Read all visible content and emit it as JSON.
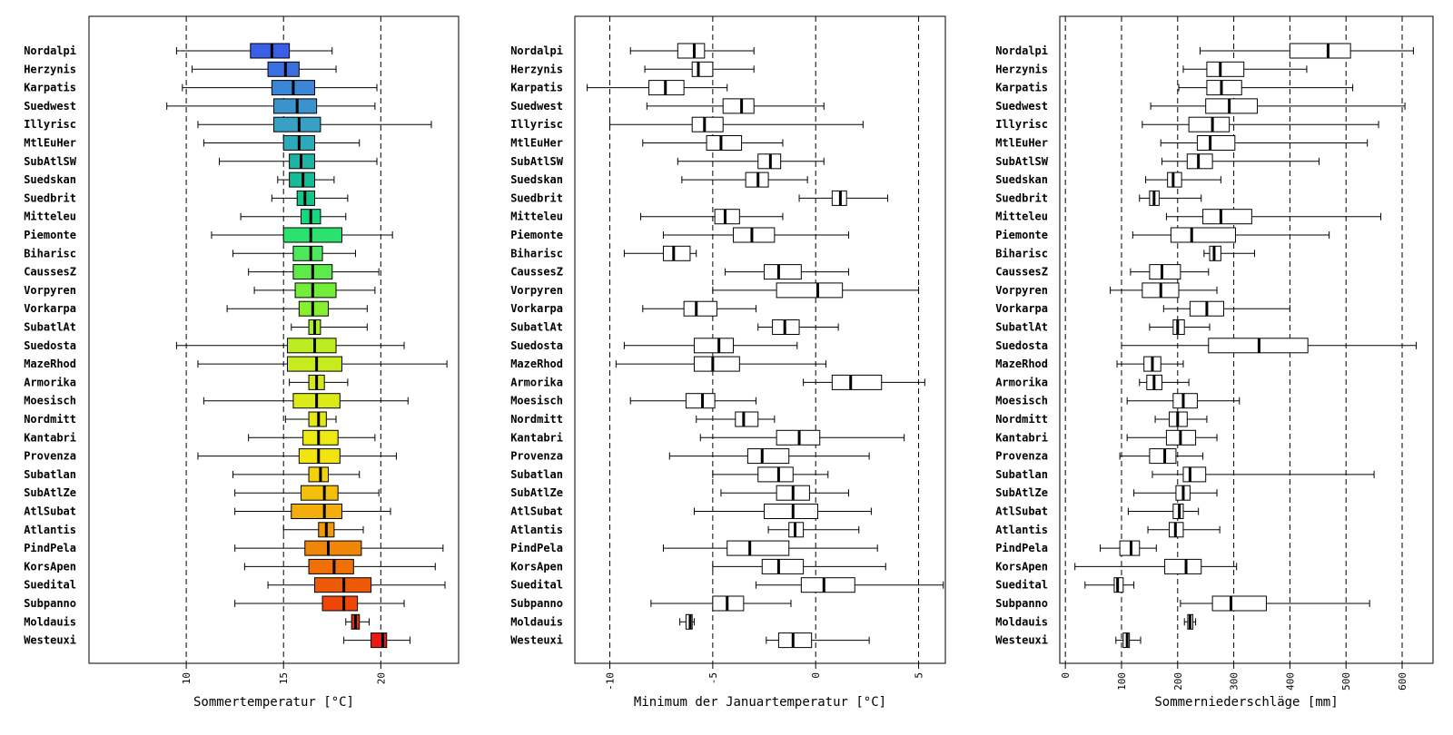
{
  "chart_data": [
    {
      "type": "boxplot",
      "xlabel": "Sommertemperatur [°C]",
      "xlim": [
        5,
        24
      ],
      "ticks": [
        10,
        15,
        20
      ],
      "tick_labels": [
        "10",
        "15",
        "20"
      ],
      "gridlines": [
        10,
        15,
        20
      ],
      "colored": true,
      "categories": [
        "Nordalpi",
        "Herzynis",
        "Karpatis",
        "Suedwest",
        "Illyrisc",
        "MtlEuHer",
        "SubAtlSW",
        "Suedskan",
        "Suedbrit",
        "Mitteleu",
        "Piemonte",
        "Biharisc",
        "CaussesZ",
        "Vorpyren",
        "Vorkarpa",
        "SubatlAt",
        "Suedosta",
        "MazeRhod",
        "Armorika",
        "Moesisch",
        "Nordmitt",
        "Kantabri",
        "Provenza",
        "Subatlan",
        "SubAtlZe",
        "AtlSubat",
        "Atlantis",
        "PindPela",
        "KorsApen",
        "Suedital",
        "Subpanno",
        "Moldauis",
        "Westeuxi"
      ],
      "colors": [
        "#3a5fe6",
        "#3b6fe0",
        "#3b86d4",
        "#3a93cc",
        "#37a0c4",
        "#2caab8",
        "#1db4a6",
        "#14bd98",
        "#10c789",
        "#19d77e",
        "#2ce26e",
        "#4ee85c",
        "#5eea4a",
        "#72ee3a",
        "#86f030",
        "#a8ef2a",
        "#bcec22",
        "#c8eb1e",
        "#d6e81c",
        "#dcea18",
        "#e4e616",
        "#ecea12",
        "#f2e410",
        "#f2d20c",
        "#f2c00a",
        "#f2ae0c",
        "#f29a0a",
        "#f08608",
        "#f07006",
        "#ec5a06",
        "#ee4606",
        "#e43204",
        "#ea1a10"
      ],
      "boxes": [
        {
          "whislo": 9.5,
          "q1": 13.3,
          "med": 14.4,
          "q3": 15.3,
          "whishi": 17.5
        },
        {
          "whislo": 10.3,
          "q1": 14.2,
          "med": 15.1,
          "q3": 15.8,
          "whishi": 17.7
        },
        {
          "whislo": 9.8,
          "q1": 14.4,
          "med": 15.5,
          "q3": 16.6,
          "whishi": 19.8
        },
        {
          "whislo": 9.0,
          "q1": 14.5,
          "med": 15.7,
          "q3": 16.7,
          "whishi": 19.7
        },
        {
          "whislo": 10.6,
          "q1": 14.5,
          "med": 15.8,
          "q3": 16.9,
          "whishi": 22.6
        },
        {
          "whislo": 10.9,
          "q1": 15.0,
          "med": 15.8,
          "q3": 16.6,
          "whishi": 18.9
        },
        {
          "whislo": 11.7,
          "q1": 15.3,
          "med": 15.9,
          "q3": 16.6,
          "whishi": 19.8
        },
        {
          "whislo": 14.7,
          "q1": 15.3,
          "med": 16.0,
          "q3": 16.6,
          "whishi": 17.6
        },
        {
          "whislo": 14.4,
          "q1": 15.7,
          "med": 16.1,
          "q3": 16.6,
          "whishi": 18.3
        },
        {
          "whislo": 12.8,
          "q1": 15.9,
          "med": 16.4,
          "q3": 16.9,
          "whishi": 18.2
        },
        {
          "whislo": 11.3,
          "q1": 15.0,
          "med": 16.4,
          "q3": 18.0,
          "whishi": 20.6
        },
        {
          "whislo": 12.4,
          "q1": 15.5,
          "med": 16.4,
          "q3": 17.0,
          "whishi": 18.7
        },
        {
          "whislo": 13.2,
          "q1": 15.5,
          "med": 16.5,
          "q3": 17.5,
          "whishi": 19.9
        },
        {
          "whislo": 13.5,
          "q1": 15.6,
          "med": 16.5,
          "q3": 17.7,
          "whishi": 19.7
        },
        {
          "whislo": 12.1,
          "q1": 15.8,
          "med": 16.5,
          "q3": 17.3,
          "whishi": 19.3
        },
        {
          "whislo": 15.4,
          "q1": 16.3,
          "med": 16.6,
          "q3": 16.9,
          "whishi": 19.3
        },
        {
          "whislo": 9.5,
          "q1": 15.2,
          "med": 16.6,
          "q3": 17.7,
          "whishi": 21.2
        },
        {
          "whislo": 10.6,
          "q1": 15.2,
          "med": 16.7,
          "q3": 18.0,
          "whishi": 23.4
        },
        {
          "whislo": 15.3,
          "q1": 16.3,
          "med": 16.7,
          "q3": 17.1,
          "whishi": 18.3
        },
        {
          "whislo": 10.9,
          "q1": 15.5,
          "med": 16.7,
          "q3": 17.9,
          "whishi": 21.4
        },
        {
          "whislo": 15.1,
          "q1": 16.3,
          "med": 16.8,
          "q3": 17.2,
          "whishi": 17.7
        },
        {
          "whislo": 13.2,
          "q1": 16.0,
          "med": 16.8,
          "q3": 17.8,
          "whishi": 19.7
        },
        {
          "whislo": 10.6,
          "q1": 15.8,
          "med": 16.8,
          "q3": 17.9,
          "whishi": 20.8
        },
        {
          "whislo": 12.4,
          "q1": 16.3,
          "med": 16.9,
          "q3": 17.3,
          "whishi": 18.9
        },
        {
          "whislo": 12.5,
          "q1": 15.9,
          "med": 17.1,
          "q3": 17.8,
          "whishi": 19.9
        },
        {
          "whislo": 12.5,
          "q1": 15.4,
          "med": 17.1,
          "q3": 18.0,
          "whishi": 20.5
        },
        {
          "whislo": 15.0,
          "q1": 16.8,
          "med": 17.2,
          "q3": 17.6,
          "whishi": 19.1
        },
        {
          "whislo": 12.5,
          "q1": 16.1,
          "med": 17.3,
          "q3": 19.0,
          "whishi": 23.2
        },
        {
          "whislo": 13.0,
          "q1": 16.3,
          "med": 17.6,
          "q3": 18.6,
          "whishi": 22.8
        },
        {
          "whislo": 14.2,
          "q1": 16.6,
          "med": 18.1,
          "q3": 19.5,
          "whishi": 23.3
        },
        {
          "whislo": 12.5,
          "q1": 17.0,
          "med": 18.1,
          "q3": 18.8,
          "whishi": 21.2
        },
        {
          "whislo": 18.2,
          "q1": 18.5,
          "med": 18.7,
          "q3": 18.9,
          "whishi": 19.4
        },
        {
          "whislo": 18.1,
          "q1": 19.5,
          "med": 20.1,
          "q3": 20.3,
          "whishi": 21.5
        }
      ]
    },
    {
      "type": "boxplot",
      "xlabel": "Minimum der Januartemperatur [°C]",
      "xlim": [
        -11.7,
        6.3
      ],
      "ticks": [
        -10,
        -5,
        0,
        5
      ],
      "tick_labels": [
        "-10",
        "-5",
        "0",
        "5"
      ],
      "gridlines": [
        -10,
        -5,
        0,
        5
      ],
      "colored": false,
      "categories": [
        "Nordalpi",
        "Herzynis",
        "Karpatis",
        "Suedwest",
        "Illyrisc",
        "MtlEuHer",
        "SubAtlSW",
        "Suedskan",
        "Suedbrit",
        "Mitteleu",
        "Piemonte",
        "Biharisc",
        "CaussesZ",
        "Vorpyren",
        "Vorkarpa",
        "SubatlAt",
        "Suedosta",
        "MazeRhod",
        "Armorika",
        "Moesisch",
        "Nordmitt",
        "Kantabri",
        "Provenza",
        "Subatlan",
        "SubAtlZe",
        "AtlSubat",
        "Atlantis",
        "PindPela",
        "KorsApen",
        "Suedital",
        "Subpanno",
        "Moldauis",
        "Westeuxi"
      ],
      "boxes": [
        {
          "whislo": -9.0,
          "q1": -6.7,
          "med": -5.9,
          "q3": -5.4,
          "whishi": -3.0
        },
        {
          "whislo": -8.3,
          "q1": -6.0,
          "med": -5.7,
          "q3": -5.0,
          "whishi": -3.0
        },
        {
          "whislo": -11.1,
          "q1": -8.1,
          "med": -7.3,
          "q3": -6.4,
          "whishi": -4.3
        },
        {
          "whislo": -8.2,
          "q1": -4.5,
          "med": -3.6,
          "q3": -3.0,
          "whishi": 0.4
        },
        {
          "whislo": -10.0,
          "q1": -6.0,
          "med": -5.4,
          "q3": -4.5,
          "whishi": 2.3
        },
        {
          "whislo": -8.4,
          "q1": -5.3,
          "med": -4.6,
          "q3": -3.6,
          "whishi": -1.6
        },
        {
          "whislo": -6.7,
          "q1": -2.8,
          "med": -2.2,
          "q3": -1.7,
          "whishi": 0.4
        },
        {
          "whislo": -6.5,
          "q1": -3.4,
          "med": -2.8,
          "q3": -2.3,
          "whishi": -0.4
        },
        {
          "whislo": -0.8,
          "q1": 0.8,
          "med": 1.2,
          "q3": 1.5,
          "whishi": 3.5
        },
        {
          "whislo": -8.5,
          "q1": -4.9,
          "med": -4.4,
          "q3": -3.7,
          "whishi": -1.6
        },
        {
          "whislo": -7.4,
          "q1": -4.0,
          "med": -3.1,
          "q3": -2.0,
          "whishi": 1.6
        },
        {
          "whislo": -9.3,
          "q1": -7.4,
          "med": -6.9,
          "q3": -6.1,
          "whishi": -5.8
        },
        {
          "whislo": -4.4,
          "q1": -2.5,
          "med": -1.8,
          "q3": -0.7,
          "whishi": 1.6
        },
        {
          "whislo": -5.0,
          "q1": -1.9,
          "med": 0.1,
          "q3": 1.3,
          "whishi": 5.0
        },
        {
          "whislo": -8.4,
          "q1": -6.4,
          "med": -5.8,
          "q3": -4.8,
          "whishi": -2.9
        },
        {
          "whislo": -2.8,
          "q1": -2.1,
          "med": -1.5,
          "q3": -0.8,
          "whishi": 1.1
        },
        {
          "whislo": -9.3,
          "q1": -5.9,
          "med": -4.7,
          "q3": -4.0,
          "whishi": -0.9
        },
        {
          "whislo": -9.7,
          "q1": -5.9,
          "med": -5.0,
          "q3": -3.7,
          "whishi": 0.5
        },
        {
          "whislo": -0.6,
          "q1": 0.8,
          "med": 1.7,
          "q3": 3.2,
          "whishi": 5.3
        },
        {
          "whislo": -9.0,
          "q1": -6.3,
          "med": -5.5,
          "q3": -4.9,
          "whishi": -2.9
        },
        {
          "whislo": -5.8,
          "q1": -3.9,
          "med": -3.5,
          "q3": -2.8,
          "whishi": -2.0
        },
        {
          "whislo": -5.6,
          "q1": -1.9,
          "med": -0.8,
          "q3": 0.2,
          "whishi": 4.3
        },
        {
          "whislo": -7.1,
          "q1": -3.3,
          "med": -2.6,
          "q3": -1.3,
          "whishi": 2.6
        },
        {
          "whislo": -5.0,
          "q1": -2.8,
          "med": -1.8,
          "q3": -1.1,
          "whishi": 0.6
        },
        {
          "whislo": -4.6,
          "q1": -1.9,
          "med": -1.1,
          "q3": -0.3,
          "whishi": 1.6
        },
        {
          "whislo": -5.9,
          "q1": -2.5,
          "med": -1.1,
          "q3": 0.1,
          "whishi": 2.7
        },
        {
          "whislo": -2.3,
          "q1": -1.3,
          "med": -1.0,
          "q3": -0.6,
          "whishi": 2.1
        },
        {
          "whislo": -7.4,
          "q1": -4.3,
          "med": -3.2,
          "q3": -1.3,
          "whishi": 3.0
        },
        {
          "whislo": -5.0,
          "q1": -2.6,
          "med": -1.8,
          "q3": -0.6,
          "whishi": 3.4
        },
        {
          "whislo": -2.9,
          "q1": -0.7,
          "med": 0.4,
          "q3": 1.9,
          "whishi": 6.2
        },
        {
          "whislo": -8.0,
          "q1": -5.0,
          "med": -4.3,
          "q3": -3.5,
          "whishi": -1.2
        },
        {
          "whislo": -6.6,
          "q1": -6.3,
          "med": -6.1,
          "q3": -6.0,
          "whishi": -5.9
        },
        {
          "whislo": -2.4,
          "q1": -1.8,
          "med": -1.1,
          "q3": -0.2,
          "whishi": 2.6
        }
      ]
    },
    {
      "type": "boxplot",
      "xlabel": "Sommerniederschläge [mm]",
      "xlim": [
        -10,
        655
      ],
      "ticks": [
        0,
        100,
        200,
        300,
        400,
        500,
        600
      ],
      "tick_labels": [
        "0",
        "100",
        "200",
        "300",
        "400",
        "500",
        "600"
      ],
      "gridlines": [
        0,
        100,
        200,
        300,
        400,
        500,
        600
      ],
      "colored": false,
      "categories": [
        "Nordalpi",
        "Herzynis",
        "Karpatis",
        "Suedwest",
        "Illyrisc",
        "MtlEuHer",
        "SubAtlSW",
        "Suedskan",
        "Suedbrit",
        "Mitteleu",
        "Piemonte",
        "Biharisc",
        "CaussesZ",
        "Vorpyren",
        "Vorkarpa",
        "SubatlAt",
        "Suedosta",
        "MazeRhod",
        "Armorika",
        "Moesisch",
        "Nordmitt",
        "Kantabri",
        "Provenza",
        "Subatlan",
        "SubAtlZe",
        "AtlSubat",
        "Atlantis",
        "PindPela",
        "KorsApen",
        "Suedital",
        "Subpanno",
        "Moldauis",
        "Westeuxi"
      ],
      "boxes": [
        {
          "whislo": 240,
          "q1": 400,
          "med": 468,
          "q3": 508,
          "whishi": 620
        },
        {
          "whislo": 210,
          "q1": 252,
          "med": 276,
          "q3": 318,
          "whishi": 430
        },
        {
          "whislo": 202,
          "q1": 252,
          "med": 278,
          "q3": 314,
          "whishi": 512
        },
        {
          "whislo": 152,
          "q1": 250,
          "med": 292,
          "q3": 342,
          "whishi": 605
        },
        {
          "whislo": 137,
          "q1": 220,
          "med": 262,
          "q3": 292,
          "whishi": 558
        },
        {
          "whislo": 170,
          "q1": 235,
          "med": 258,
          "q3": 302,
          "whishi": 538
        },
        {
          "whislo": 172,
          "q1": 217,
          "med": 237,
          "q3": 262,
          "whishi": 452
        },
        {
          "whislo": 143,
          "q1": 182,
          "med": 192,
          "q3": 207,
          "whishi": 277
        },
        {
          "whislo": 132,
          "q1": 150,
          "med": 158,
          "q3": 167,
          "whishi": 242
        },
        {
          "whislo": 180,
          "q1": 245,
          "med": 277,
          "q3": 332,
          "whishi": 562
        },
        {
          "whislo": 120,
          "q1": 188,
          "med": 225,
          "q3": 303,
          "whishi": 470
        },
        {
          "whislo": 247,
          "q1": 257,
          "med": 265,
          "q3": 277,
          "whishi": 337
        },
        {
          "whislo": 116,
          "q1": 150,
          "med": 172,
          "q3": 205,
          "whishi": 255
        },
        {
          "whislo": 80,
          "q1": 137,
          "med": 170,
          "q3": 202,
          "whishi": 270
        },
        {
          "whislo": 175,
          "q1": 222,
          "med": 252,
          "q3": 282,
          "whishi": 400
        },
        {
          "whislo": 150,
          "q1": 192,
          "med": 200,
          "q3": 212,
          "whishi": 257
        },
        {
          "whislo": 100,
          "q1": 255,
          "med": 345,
          "q3": 432,
          "whishi": 625
        },
        {
          "whislo": 92,
          "q1": 140,
          "med": 155,
          "q3": 170,
          "whishi": 210
        },
        {
          "whislo": 132,
          "q1": 145,
          "med": 158,
          "q3": 172,
          "whishi": 220
        },
        {
          "whislo": 110,
          "q1": 192,
          "med": 210,
          "q3": 235,
          "whishi": 310
        },
        {
          "whislo": 160,
          "q1": 185,
          "med": 200,
          "q3": 217,
          "whishi": 252
        },
        {
          "whislo": 110,
          "q1": 180,
          "med": 205,
          "q3": 232,
          "whishi": 270
        },
        {
          "whislo": 97,
          "q1": 150,
          "med": 177,
          "q3": 197,
          "whishi": 245
        },
        {
          "whislo": 155,
          "q1": 210,
          "med": 222,
          "q3": 250,
          "whishi": 550
        },
        {
          "whislo": 122,
          "q1": 197,
          "med": 210,
          "q3": 222,
          "whishi": 270
        },
        {
          "whislo": 112,
          "q1": 192,
          "med": 203,
          "q3": 210,
          "whishi": 237
        },
        {
          "whislo": 147,
          "q1": 185,
          "med": 196,
          "q3": 210,
          "whishi": 275
        },
        {
          "whislo": 62,
          "q1": 97,
          "med": 117,
          "q3": 132,
          "whishi": 162
        },
        {
          "whislo": 17,
          "q1": 177,
          "med": 215,
          "q3": 242,
          "whishi": 305
        },
        {
          "whislo": 35,
          "q1": 87,
          "med": 93,
          "q3": 103,
          "whishi": 122
        },
        {
          "whislo": 205,
          "q1": 262,
          "med": 295,
          "q3": 358,
          "whishi": 542
        },
        {
          "whislo": 212,
          "q1": 218,
          "med": 222,
          "q3": 227,
          "whishi": 232
        },
        {
          "whislo": 90,
          "q1": 103,
          "med": 110,
          "q3": 114,
          "whishi": 134
        }
      ]
    }
  ]
}
